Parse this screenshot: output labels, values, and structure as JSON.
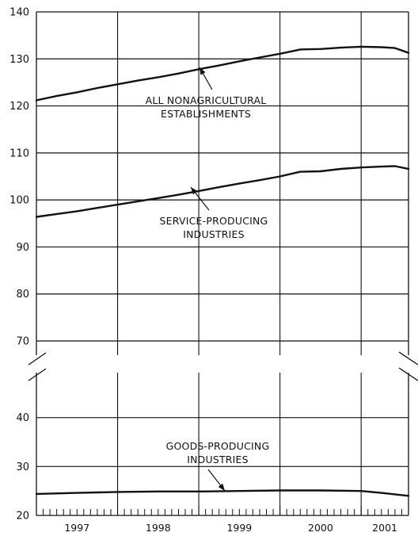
{
  "chart_data": {
    "type": "line",
    "title": "",
    "xlabel": "",
    "ylabel": "",
    "x_range": [
      "1997-01",
      "2001-08"
    ],
    "years": [
      "1997",
      "1998",
      "1999",
      "2000",
      "2001"
    ],
    "y_ticks_upper": [
      70,
      80,
      90,
      100,
      110,
      120,
      130,
      140
    ],
    "y_ticks_lower": [
      20,
      30,
      40
    ],
    "ylim_upper": [
      70,
      140
    ],
    "ylim_lower": [
      20,
      50
    ],
    "axis_break": true,
    "grid": true,
    "annotations": [
      {
        "lines": [
          "ALL NONAGRICULTURAL",
          "ESTABLISHMENTS"
        ],
        "target": "2000-01"
      },
      {
        "lines": [
          "SERVICE-PRODUCING",
          "INDUSTRIES"
        ],
        "target": "1999-04"
      },
      {
        "lines": [
          "GOODS-PRODUCING",
          "INDUSTRIES"
        ],
        "target": "1999-06"
      }
    ],
    "series": [
      {
        "name": "ALL NONAGRICULTURAL ESTABLISHMENTS",
        "x": [
          "1997-01",
          "1997-04",
          "1997-07",
          "1997-10",
          "1998-01",
          "1998-04",
          "1998-07",
          "1998-10",
          "1999-01",
          "1999-04",
          "1999-07",
          "1999-10",
          "2000-01",
          "2000-04",
          "2000-07",
          "2000-10",
          "2001-01",
          "2001-04",
          "2001-06",
          "2001-08"
        ],
        "values": [
          121.2,
          122.1,
          122.9,
          123.8,
          124.6,
          125.4,
          126.1,
          126.9,
          127.8,
          128.6,
          129.5,
          130.3,
          131.1,
          132.0,
          132.1,
          132.4,
          132.6,
          132.5,
          132.3,
          131.3
        ]
      },
      {
        "name": "SERVICE-PRODUCING INDUSTRIES",
        "x": [
          "1997-01",
          "1997-04",
          "1997-07",
          "1997-10",
          "1998-01",
          "1998-04",
          "1998-07",
          "1998-10",
          "1999-01",
          "1999-04",
          "1999-07",
          "1999-10",
          "2000-01",
          "2000-04",
          "2000-07",
          "2000-10",
          "2001-01",
          "2001-04",
          "2001-06",
          "2001-08"
        ],
        "values": [
          96.4,
          97.0,
          97.6,
          98.3,
          99.0,
          99.7,
          100.4,
          101.1,
          101.9,
          102.7,
          103.5,
          104.2,
          105.0,
          106.0,
          106.1,
          106.6,
          106.9,
          107.1,
          107.2,
          106.6
        ]
      },
      {
        "name": "GOODS-PRODUCING INDUSTRIES",
        "x": [
          "1997-01",
          "1997-07",
          "1998-01",
          "1998-07",
          "1999-01",
          "1999-07",
          "2000-01",
          "2000-07",
          "2001-01",
          "2001-04",
          "2001-08"
        ],
        "values": [
          24.4,
          24.6,
          24.8,
          24.9,
          24.9,
          25.0,
          25.1,
          25.1,
          25.0,
          24.6,
          24.0
        ]
      }
    ]
  }
}
